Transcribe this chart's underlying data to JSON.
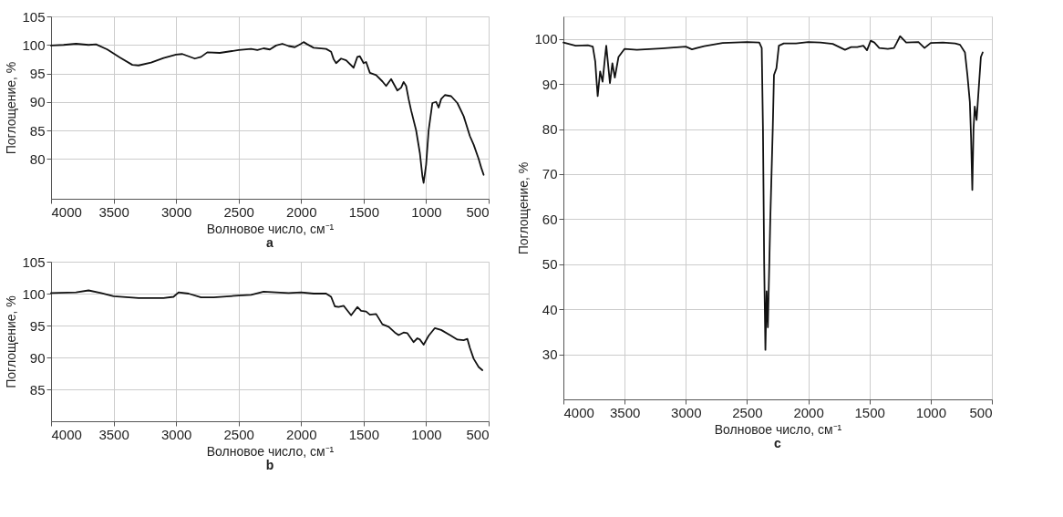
{
  "chart_data": [
    {
      "type": "line",
      "title": "a",
      "xlabel": "Волновое число, см⁻¹",
      "ylabel": "Поглощение, %",
      "xlim": [
        4000,
        500
      ],
      "ylim": [
        73,
        105
      ],
      "xticks": [
        4000,
        3500,
        3000,
        2500,
        2000,
        1500,
        1000,
        500
      ],
      "yticks": [
        80,
        85,
        90,
        95,
        100,
        105
      ],
      "grid": true,
      "marker": "none",
      "line_style": "solid",
      "series": [
        {
          "color": "#111111",
          "x": [
            4000,
            3900,
            3800,
            3700,
            3640,
            3550,
            3450,
            3350,
            3300,
            3200,
            3100,
            3000,
            2950,
            2900,
            2850,
            2800,
            2750,
            2650,
            2500,
            2400,
            2350,
            2300,
            2250,
            2200,
            2150,
            2100,
            2050,
            2000,
            1980,
            1950,
            1900,
            1800,
            1760,
            1740,
            1720,
            1680,
            1640,
            1580,
            1550,
            1530,
            1500,
            1480,
            1450,
            1400,
            1350,
            1320,
            1280,
            1230,
            1200,
            1180,
            1160,
            1140,
            1120,
            1080,
            1050,
            1030,
            1020,
            1000,
            980,
            950,
            920,
            900,
            880,
            850,
            800,
            750,
            700,
            650,
            620,
            580,
            560,
            540
          ],
          "values": [
            99.9,
            100.0,
            100.2,
            100.0,
            100.1,
            99.2,
            97.8,
            96.5,
            96.4,
            96.9,
            97.7,
            98.3,
            98.4,
            98.0,
            97.6,
            97.9,
            98.7,
            98.6,
            99.1,
            99.3,
            99.1,
            99.4,
            99.2,
            99.9,
            100.2,
            99.8,
            99.6,
            100.2,
            100.5,
            100.1,
            99.5,
            99.3,
            98.8,
            97.5,
            96.8,
            97.6,
            97.3,
            96.0,
            97.9,
            98.0,
            96.8,
            97.0,
            95.1,
            94.7,
            93.6,
            92.8,
            94.0,
            92.0,
            92.5,
            93.5,
            92.8,
            90.5,
            88.5,
            85,
            81,
            77,
            75.8,
            79,
            85,
            89.8,
            90.0,
            89.0,
            90.5,
            91.2,
            91.0,
            89.8,
            87.5,
            84,
            82.5,
            80,
            78.5,
            77.2
          ]
        }
      ]
    },
    {
      "type": "line",
      "title": "b",
      "xlabel": "Волновое число, см⁻¹",
      "ylabel": "Поглощение, %",
      "xlim": [
        4000,
        500
      ],
      "ylim": [
        80,
        105
      ],
      "xticks": [
        4000,
        3500,
        3000,
        2500,
        2000,
        1500,
        1000,
        500
      ],
      "yticks": [
        85,
        90,
        95,
        100,
        105
      ],
      "grid": true,
      "marker": "none",
      "line_style": "solid",
      "series": [
        {
          "color": "#111111",
          "x": [
            4000,
            3800,
            3700,
            3600,
            3500,
            3300,
            3100,
            3020,
            2980,
            2900,
            2800,
            2700,
            2500,
            2400,
            2300,
            2200,
            2100,
            2000,
            1900,
            1800,
            1760,
            1730,
            1700,
            1660,
            1600,
            1550,
            1520,
            1480,
            1450,
            1400,
            1350,
            1300,
            1250,
            1220,
            1180,
            1150,
            1100,
            1070,
            1050,
            1020,
            980,
            930,
            880,
            800,
            750,
            700,
            670,
            650,
            620,
            580,
            550
          ],
          "values": [
            100.1,
            100.2,
            100.5,
            100.1,
            99.6,
            99.3,
            99.3,
            99.5,
            100.2,
            100.0,
            99.4,
            99.4,
            99.7,
            99.8,
            100.3,
            100.2,
            100.1,
            100.2,
            100.0,
            100.0,
            99.5,
            98.0,
            97.9,
            98.1,
            96.6,
            97.9,
            97.3,
            97.2,
            96.7,
            96.8,
            95.2,
            94.8,
            93.9,
            93.5,
            93.9,
            93.8,
            92.4,
            93.0,
            92.8,
            92.0,
            93.4,
            94.6,
            94.3,
            93.4,
            92.8,
            92.7,
            92.9,
            91.5,
            89.8,
            88.5,
            88.0
          ]
        }
      ]
    },
    {
      "type": "line",
      "title": "c",
      "xlabel": "Волновое число, см⁻¹",
      "ylabel": "Поглощение, %",
      "xlim": [
        4000,
        500
      ],
      "ylim": [
        20,
        105
      ],
      "xticks": [
        4000,
        3500,
        3000,
        2500,
        2000,
        1500,
        1000,
        500
      ],
      "yticks": [
        30,
        40,
        50,
        60,
        70,
        80,
        90,
        100
      ],
      "grid": true,
      "marker": "none",
      "line_style": "solid",
      "series": [
        {
          "color": "#111111",
          "x": [
            4000,
            3900,
            3800,
            3760,
            3740,
            3730,
            3720,
            3700,
            3680,
            3660,
            3650,
            3630,
            3620,
            3600,
            3580,
            3550,
            3500,
            3400,
            3200,
            3000,
            2950,
            2850,
            2700,
            2500,
            2400,
            2380,
            2370,
            2360,
            2350,
            2340,
            2330,
            2310,
            2290,
            2280,
            2260,
            2240,
            2200,
            2100,
            2000,
            1900,
            1800,
            1700,
            1650,
            1600,
            1550,
            1520,
            1490,
            1460,
            1420,
            1350,
            1300,
            1280,
            1250,
            1200,
            1100,
            1050,
            1000,
            900,
            800,
            760,
            720,
            700,
            680,
            670,
            660,
            650,
            640,
            625,
            610,
            600,
            590,
            575
          ],
          "values": [
            99.2,
            98.5,
            98.6,
            98.3,
            95,
            91,
            87.3,
            92.8,
            90.5,
            96,
            98.5,
            93,
            90.2,
            94.6,
            91.4,
            96,
            97.8,
            97.6,
            97.9,
            98.3,
            97.7,
            98.4,
            99.1,
            99.3,
            99.2,
            98,
            80,
            50,
            31,
            44,
            36,
            60,
            80,
            92,
            93.5,
            98.5,
            99.0,
            99.0,
            99.3,
            99.2,
            98.9,
            97.6,
            98.2,
            98.2,
            98.5,
            97.5,
            99.6,
            99.2,
            98.0,
            97.8,
            98.0,
            99.0,
            100.6,
            99.2,
            99.3,
            98.0,
            99.1,
            99.2,
            99.0,
            98.7,
            97,
            92,
            86,
            78,
            66.5,
            80,
            85,
            82,
            88,
            92,
            96,
            97
          ]
        }
      ]
    }
  ]
}
